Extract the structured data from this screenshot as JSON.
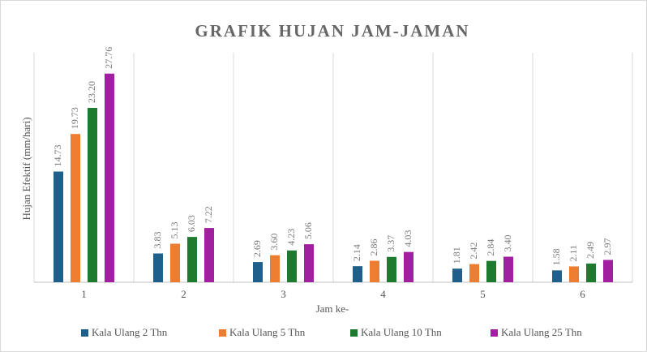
{
  "chart_data": {
    "type": "bar",
    "title": "GRAFIK HUJAN JAM-JAMAN",
    "x_label": "Jam ke-",
    "y_label": "Hujan Efektif (mm/hari)",
    "categories": [
      "1",
      "2",
      "3",
      "4",
      "5",
      "6"
    ],
    "series": [
      {
        "name": "Kala Ulang 2 Thn",
        "color": "#1f5f8b",
        "values": [
          14.73,
          3.83,
          2.69,
          2.14,
          1.81,
          1.58
        ],
        "value_labels": [
          "14.73",
          "3.83",
          "2.69",
          "2.14",
          "1.81",
          "1.58"
        ]
      },
      {
        "name": "Kala Ulang 5 Thn",
        "color": "#ed7d31",
        "values": [
          19.73,
          5.13,
          3.6,
          2.86,
          2.42,
          2.11
        ],
        "value_labels": [
          "19.73",
          "5.13",
          "3.60",
          "2.86",
          "2.42",
          "2.11"
        ]
      },
      {
        "name": "Kala Ulang 10 Thn",
        "color": "#1e7a2e",
        "values": [
          23.2,
          6.03,
          4.23,
          3.37,
          2.84,
          2.49
        ],
        "value_labels": [
          "23.20",
          "6.03",
          "4.23",
          "3.37",
          "2.84",
          "2.49"
        ]
      },
      {
        "name": "Kala Ulang 25 Thn",
        "color": "#a020a0",
        "values": [
          27.76,
          7.22,
          5.06,
          4.03,
          3.4,
          2.97
        ],
        "value_labels": [
          "27.76",
          "7.22",
          "5.06",
          "4.03",
          "3.40",
          "2.97"
        ]
      }
    ],
    "ylim": [
      0,
      30
    ],
    "legend": "bottom"
  }
}
